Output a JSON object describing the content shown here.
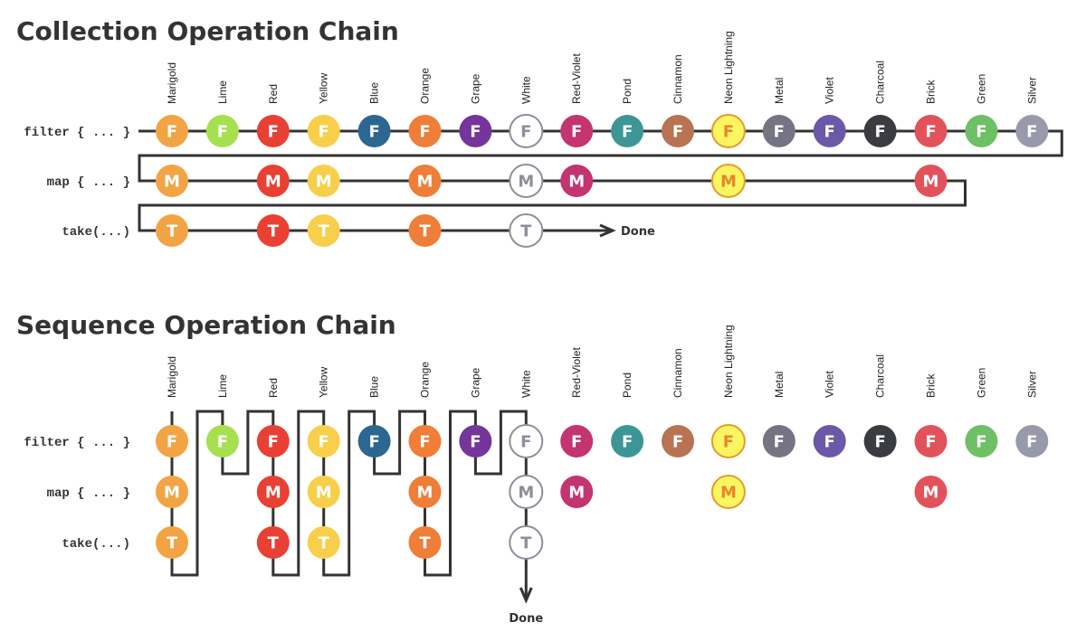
{
  "colors": [
    {
      "name": "Marigold",
      "hex": "#F2A444"
    },
    {
      "name": "Lime",
      "hex": "#A6E04F"
    },
    {
      "name": "Red",
      "hex": "#E84133"
    },
    {
      "name": "Yellow",
      "hex": "#F7CF4A"
    },
    {
      "name": "Blue",
      "hex": "#2C6791"
    },
    {
      "name": "Orange",
      "hex": "#EE7E38"
    },
    {
      "name": "Grape",
      "hex": "#75359A"
    },
    {
      "name": "White",
      "hex": "#FFFFFF"
    },
    {
      "name": "Red-Violet",
      "hex": "#C33470"
    },
    {
      "name": "Pond",
      "hex": "#3C9696"
    },
    {
      "name": "Cinnamon",
      "hex": "#B87353"
    },
    {
      "name": "Neon Lightning",
      "hex": "#F9F660"
    },
    {
      "name": "Metal",
      "hex": "#747482"
    },
    {
      "name": "Violet",
      "hex": "#6B58A9"
    },
    {
      "name": "Charcoal",
      "hex": "#3B3C42"
    },
    {
      "name": "Brick",
      "hex": "#E2525A"
    },
    {
      "name": "Green",
      "hex": "#6DC064"
    },
    {
      "name": "Silver",
      "hex": "#9899AA"
    }
  ],
  "ops": {
    "filter": {
      "label": "filter { ... }",
      "letter": "F"
    },
    "map": {
      "label": "map { ... }",
      "letter": "M"
    },
    "take": {
      "label": "take(...)",
      "letter": "T"
    }
  },
  "map_indices": [
    0,
    2,
    3,
    5,
    7,
    8,
    11,
    15
  ],
  "take_indices": [
    0,
    2,
    3,
    5,
    7
  ],
  "collection": {
    "title": "Collection Operation Chain",
    "done": "Done"
  },
  "sequence": {
    "title": "Sequence Operation Chain",
    "done": "Done"
  }
}
